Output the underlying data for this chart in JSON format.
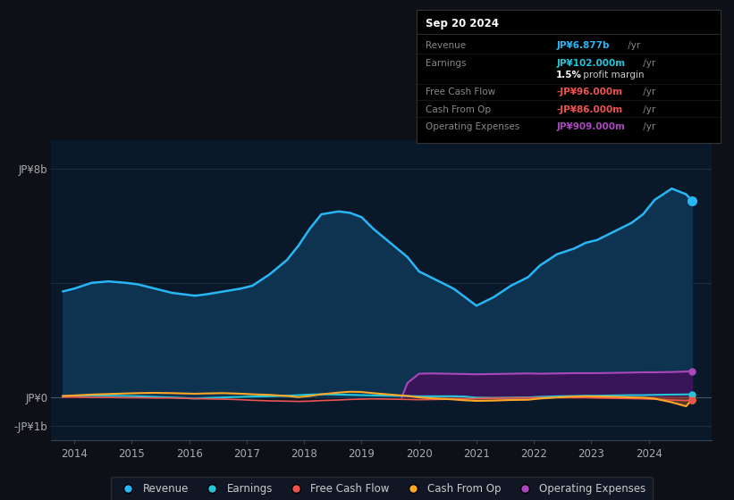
{
  "bg_color": "#0d1117",
  "plot_bg_color": "#0a1929",
  "revenue_color": "#29b6f6",
  "earnings_color": "#26c6da",
  "fcf_color": "#ef5350",
  "cashop_color": "#ffa726",
  "opex_color": "#ab47bc",
  "revenue_fill_color": "#0d2d4a",
  "opex_fill_color": "#3d1259",
  "legend_labels": [
    "Revenue",
    "Earnings",
    "Free Cash Flow",
    "Cash From Op",
    "Operating Expenses"
  ],
  "legend_colors": [
    "#29b6f6",
    "#26c6da",
    "#ef5350",
    "#ffa726",
    "#ab47bc"
  ],
  "tooltip_title": "Sep 20 2024",
  "ylim_top": 9.0,
  "ylim_bottom": -1.5,
  "xlim_left": 2013.6,
  "xlim_right": 2025.1,
  "x_ticks": [
    2014,
    2015,
    2016,
    2017,
    2018,
    2019,
    2020,
    2021,
    2022,
    2023,
    2024
  ],
  "y_ticks_vals": [
    8,
    0,
    -1
  ],
  "y_ticks_labels": [
    "JP¥8b",
    "JP¥0",
    "-JP¥1b"
  ]
}
